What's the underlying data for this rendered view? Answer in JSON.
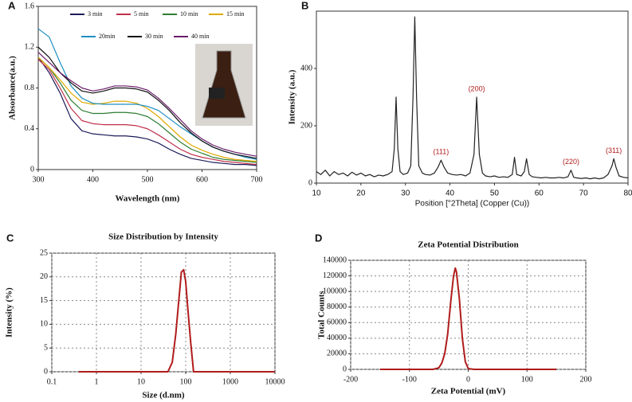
{
  "chart_data": [
    {
      "type": "line",
      "label": "A",
      "xlabel": "Wavelength (nm)",
      "ylabel": "Absorbance(a.u.)",
      "x": [
        300,
        320,
        340,
        360,
        380,
        400,
        420,
        440,
        460,
        480,
        500,
        520,
        540,
        560,
        580,
        600,
        620,
        640,
        660,
        680,
        700
      ],
      "series": [
        {
          "name": "3 min",
          "color": "#1c1c5a",
          "values": [
            1.1,
            0.95,
            0.75,
            0.5,
            0.38,
            0.35,
            0.34,
            0.33,
            0.33,
            0.32,
            0.3,
            0.26,
            0.2,
            0.15,
            0.11,
            0.09,
            0.07,
            0.06,
            0.05,
            0.05,
            0.04
          ]
        },
        {
          "name": "5 min",
          "color": "#c0304a",
          "values": [
            1.08,
            0.98,
            0.8,
            0.6,
            0.48,
            0.45,
            0.44,
            0.44,
            0.44,
            0.43,
            0.4,
            0.34,
            0.27,
            0.2,
            0.15,
            0.12,
            0.1,
            0.08,
            0.07,
            0.06,
            0.05
          ]
        },
        {
          "name": "10 min",
          "color": "#2e7d32",
          "values": [
            1.1,
            1.0,
            0.85,
            0.68,
            0.58,
            0.55,
            0.55,
            0.56,
            0.56,
            0.55,
            0.52,
            0.45,
            0.36,
            0.27,
            0.2,
            0.16,
            0.12,
            0.1,
            0.09,
            0.08,
            0.07
          ]
        },
        {
          "name": "15 min",
          "color": "#e0a800",
          "values": [
            1.1,
            1.0,
            0.88,
            0.75,
            0.66,
            0.64,
            0.65,
            0.67,
            0.67,
            0.65,
            0.6,
            0.52,
            0.42,
            0.32,
            0.24,
            0.19,
            0.15,
            0.12,
            0.1,
            0.09,
            0.08
          ]
        },
        {
          "name": "20min",
          "color": "#1f8fc0",
          "values": [
            1.38,
            1.3,
            1.05,
            0.82,
            0.7,
            0.65,
            0.64,
            0.64,
            0.64,
            0.64,
            0.62,
            0.58,
            0.5,
            0.42,
            0.35,
            0.28,
            0.22,
            0.18,
            0.15,
            0.12,
            0.1
          ]
        },
        {
          "name": "30 min",
          "color": "#111111",
          "values": [
            1.2,
            1.1,
            0.95,
            0.85,
            0.77,
            0.75,
            0.77,
            0.8,
            0.8,
            0.79,
            0.76,
            0.68,
            0.58,
            0.46,
            0.36,
            0.28,
            0.22,
            0.18,
            0.15,
            0.13,
            0.11
          ]
        },
        {
          "name": "40 min",
          "color": "#6a1b6a",
          "values": [
            1.15,
            1.05,
            0.95,
            0.87,
            0.8,
            0.77,
            0.79,
            0.82,
            0.82,
            0.81,
            0.78,
            0.7,
            0.6,
            0.49,
            0.38,
            0.3,
            0.24,
            0.2,
            0.17,
            0.15,
            0.13
          ]
        }
      ],
      "xlim": [
        300,
        700
      ],
      "xticks": [
        300,
        400,
        500,
        600,
        700
      ],
      "ylim": [
        0,
        1.6
      ],
      "yticks": [
        0,
        0.4,
        0.8,
        1.2,
        1.6
      ],
      "grid": false,
      "legend": "top"
    },
    {
      "type": "line",
      "label": "B",
      "xlabel": "Position [°2Theta] (Copper (Cu))",
      "ylabel": "Intensity (a.u.)",
      "x": [
        10,
        11,
        12,
        13,
        14,
        15,
        16,
        17,
        18,
        19,
        20,
        21,
        22,
        23,
        24,
        25,
        26,
        27,
        27.5,
        27.9,
        28.3,
        28.8,
        29.5,
        30.5,
        31.2,
        31.7,
        32.1,
        32.5,
        33,
        33.8,
        34.5,
        35.5,
        36.5,
        37.3,
        38,
        38.7,
        39.5,
        40.5,
        41.5,
        42.5,
        43.5,
        44.5,
        45.4,
        46,
        46.6,
        47.3,
        48,
        49,
        50,
        51,
        52,
        53,
        54,
        54.5,
        55,
        56,
        56.7,
        57.2,
        57.8,
        58.5,
        59.5,
        60.5,
        61.5,
        62.5,
        63.5,
        64.5,
        65.5,
        66.5,
        67.2,
        67.8,
        68.5,
        69.5,
        70.5,
        71.5,
        72.5,
        73.5,
        74.5,
        75.5,
        76.4,
        76.8,
        77.3,
        78,
        79,
        80
      ],
      "series": [
        {
          "color": "#222222",
          "values": [
            40,
            30,
            45,
            25,
            40,
            30,
            35,
            25,
            38,
            28,
            35,
            25,
            30,
            22,
            28,
            25,
            30,
            40,
            120,
            300,
            120,
            40,
            30,
            35,
            60,
            300,
            580,
            300,
            60,
            35,
            30,
            28,
            35,
            55,
            80,
            55,
            35,
            30,
            28,
            30,
            25,
            35,
            100,
            300,
            100,
            35,
            25,
            22,
            25,
            20,
            22,
            20,
            30,
            90,
            30,
            25,
            40,
            85,
            30,
            22,
            20,
            18,
            20,
            18,
            18,
            20,
            18,
            22,
            45,
            20,
            18,
            16,
            18,
            15,
            18,
            15,
            18,
            30,
            60,
            85,
            55,
            25,
            20,
            18
          ]
        }
      ],
      "annotations": [
        {
          "text": "(111)",
          "x": 38,
          "y": 80
        },
        {
          "text": "(200)",
          "x": 46,
          "y": 300
        },
        {
          "text": "(220)",
          "x": 67.2,
          "y": 45
        },
        {
          "text": "(311)",
          "x": 76.8,
          "y": 85
        }
      ],
      "xlim": [
        10,
        80
      ],
      "xticks": [
        10,
        20,
        30,
        40,
        50,
        60,
        70,
        80
      ],
      "ylim": [
        0,
        600
      ],
      "yticks": [
        0,
        200,
        400
      ],
      "grid": false
    },
    {
      "type": "line",
      "label": "C",
      "title": "Size Distribution by Intensity",
      "xlabel": "Size (d.nm)",
      "ylabel": "Intensity (%)",
      "x": [
        0.4,
        1,
        10,
        40,
        50,
        60,
        70,
        80,
        90,
        100,
        110,
        130,
        150,
        200,
        1000,
        10000
      ],
      "series": [
        {
          "color": "#b01c1c",
          "values": [
            0,
            0,
            0,
            0,
            2,
            8,
            15,
            21,
            21.5,
            19,
            14,
            6,
            0,
            0,
            0,
            0
          ]
        }
      ],
      "xscale": "log",
      "xlim": [
        0.1,
        10000
      ],
      "xticks": [
        0.1,
        1,
        10,
        100,
        1000,
        10000
      ],
      "ylim": [
        0,
        25
      ],
      "yticks": [
        0,
        5,
        10,
        15,
        20,
        25
      ],
      "grid": true
    },
    {
      "type": "line",
      "label": "D",
      "title": "Zeta Potential Distribution",
      "xlabel": "Zeta Potential (mV)",
      "ylabel": "Total Counts",
      "x": [
        -150,
        -60,
        -50,
        -45,
        -40,
        -35,
        -30,
        -25,
        -22,
        -20,
        -15,
        -10,
        -5,
        0,
        10,
        150
      ],
      "series": [
        {
          "color": "#b01c1c",
          "values": [
            0,
            0,
            2000,
            8000,
            20000,
            45000,
            85000,
            120000,
            130000,
            125000,
            90000,
            40000,
            10000,
            1000,
            0,
            0
          ]
        }
      ],
      "xlim": [
        -200,
        200
      ],
      "xticks": [
        -200,
        -100,
        0,
        100,
        200
      ],
      "ylim": [
        0,
        140000
      ],
      "yticks": [
        0,
        20000,
        40000,
        60000,
        80000,
        100000,
        120000,
        140000
      ],
      "grid": true
    }
  ]
}
